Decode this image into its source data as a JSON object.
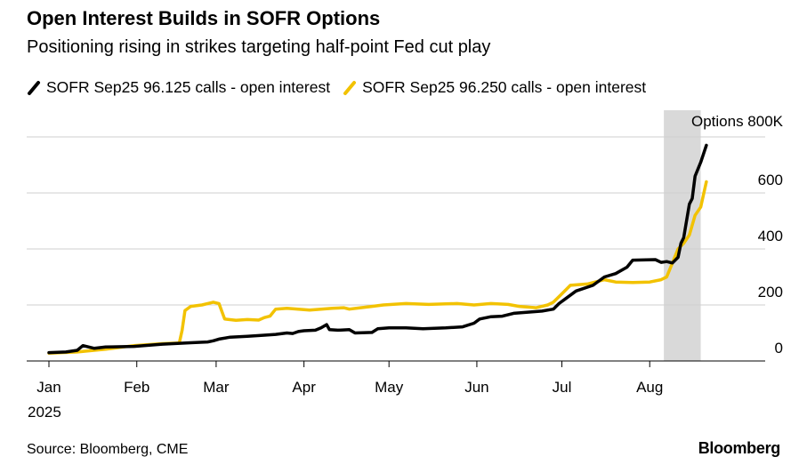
{
  "title": "Open Interest Builds in SOFR Options",
  "subtitle": "Positioning rising in strikes targeting half-point Fed cut play",
  "source": "Source: Bloomberg, CME",
  "brand": "Bloomberg",
  "chart_data": {
    "type": "line",
    "yunit_label": "Options 800K",
    "ylim": [
      0,
      800
    ],
    "yticks": [
      0,
      200,
      400,
      600
    ],
    "x_start_day": 0,
    "x_end_day": 270,
    "xticks": [
      {
        "day": 0,
        "label": "Jan"
      },
      {
        "day": 31,
        "label": "Feb"
      },
      {
        "day": 59,
        "label": "Mar"
      },
      {
        "day": 90,
        "label": "Apr"
      },
      {
        "day": 120,
        "label": "May"
      },
      {
        "day": 151,
        "label": "Jun"
      },
      {
        "day": 181,
        "label": "Jul"
      },
      {
        "day": 212,
        "label": "Aug"
      }
    ],
    "year_label": "2025",
    "shaded_region": {
      "from_day": 217,
      "to_day": 230
    },
    "series": [
      {
        "name": "SOFR Sep25 96.125 calls - open interest",
        "color": "#000000",
        "points": [
          [
            0,
            30
          ],
          [
            6,
            32
          ],
          [
            10,
            38
          ],
          [
            12,
            55
          ],
          [
            16,
            45
          ],
          [
            20,
            50
          ],
          [
            30,
            52
          ],
          [
            40,
            60
          ],
          [
            50,
            65
          ],
          [
            56,
            68
          ],
          [
            58,
            72
          ],
          [
            60,
            78
          ],
          [
            64,
            85
          ],
          [
            70,
            88
          ],
          [
            76,
            92
          ],
          [
            80,
            95
          ],
          [
            84,
            100
          ],
          [
            86,
            98
          ],
          [
            88,
            105
          ],
          [
            90,
            108
          ],
          [
            94,
            110
          ],
          [
            96,
            118
          ],
          [
            98,
            130
          ],
          [
            99,
            112
          ],
          [
            102,
            110
          ],
          [
            106,
            112
          ],
          [
            108,
            100
          ],
          [
            114,
            102
          ],
          [
            116,
            115
          ],
          [
            120,
            118
          ],
          [
            126,
            118
          ],
          [
            132,
            115
          ],
          [
            140,
            118
          ],
          [
            146,
            122
          ],
          [
            150,
            135
          ],
          [
            152,
            150
          ],
          [
            156,
            158
          ],
          [
            160,
            160
          ],
          [
            164,
            170
          ],
          [
            170,
            175
          ],
          [
            174,
            178
          ],
          [
            178,
            185
          ],
          [
            180,
            205
          ],
          [
            182,
            220
          ],
          [
            186,
            250
          ],
          [
            192,
            270
          ],
          [
            196,
            300
          ],
          [
            200,
            312
          ],
          [
            204,
            335
          ],
          [
            206,
            360
          ],
          [
            214,
            362
          ],
          [
            216,
            352
          ],
          [
            218,
            355
          ],
          [
            220,
            350
          ],
          [
            222,
            370
          ],
          [
            223,
            420
          ],
          [
            224,
            440
          ],
          [
            225,
            500
          ],
          [
            226,
            560
          ],
          [
            227,
            580
          ],
          [
            228,
            660
          ],
          [
            230,
            710
          ],
          [
            232,
            770
          ]
        ]
      },
      {
        "name": "SOFR Sep25 96.250 calls - open interest",
        "color": "#f2c200",
        "points": [
          [
            0,
            28
          ],
          [
            10,
            32
          ],
          [
            20,
            42
          ],
          [
            30,
            55
          ],
          [
            40,
            62
          ],
          [
            46,
            64
          ],
          [
            47,
            110
          ],
          [
            48,
            180
          ],
          [
            50,
            195
          ],
          [
            54,
            200
          ],
          [
            58,
            210
          ],
          [
            60,
            205
          ],
          [
            62,
            150
          ],
          [
            66,
            145
          ],
          [
            70,
            148
          ],
          [
            74,
            146
          ],
          [
            76,
            155
          ],
          [
            78,
            160
          ],
          [
            80,
            185
          ],
          [
            84,
            188
          ],
          [
            92,
            182
          ],
          [
            100,
            188
          ],
          [
            104,
            190
          ],
          [
            106,
            185
          ],
          [
            110,
            190
          ],
          [
            114,
            195
          ],
          [
            118,
            200
          ],
          [
            126,
            205
          ],
          [
            134,
            202
          ],
          [
            144,
            205
          ],
          [
            150,
            200
          ],
          [
            156,
            205
          ],
          [
            162,
            202
          ],
          [
            166,
            195
          ],
          [
            172,
            190
          ],
          [
            176,
            200
          ],
          [
            178,
            210
          ],
          [
            180,
            230
          ],
          [
            182,
            250
          ],
          [
            184,
            270
          ],
          [
            190,
            275
          ],
          [
            194,
            285
          ],
          [
            196,
            290
          ],
          [
            200,
            282
          ],
          [
            206,
            280
          ],
          [
            212,
            282
          ],
          [
            216,
            290
          ],
          [
            218,
            300
          ],
          [
            220,
            350
          ],
          [
            222,
            400
          ],
          [
            224,
            420
          ],
          [
            226,
            450
          ],
          [
            228,
            520
          ],
          [
            230,
            550
          ],
          [
            232,
            640
          ]
        ]
      }
    ]
  }
}
